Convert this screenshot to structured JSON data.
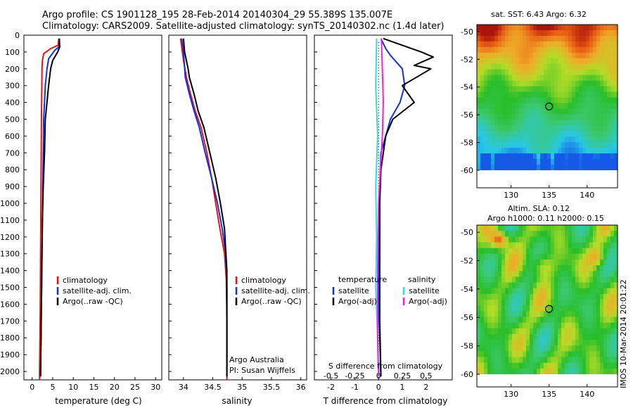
{
  "header": {
    "title_line1": "Argo profile: CS 1901128_195 28-Feb-2014 20140304_29 55.389S 135.007E",
    "title_line2": "Climatology: CARS2009. Satellite-adjusted climatology: synTS_20140302.nc (1.4d later)"
  },
  "stamp": "IMOS 10-Mar-2014 20:01:22",
  "colors": {
    "climatology": "#ee1111",
    "satellite": "#1133dd",
    "argo": "#000000",
    "sal_satellite": "#33dddd",
    "sal_argo": "#ee22ee"
  },
  "depth_axis": {
    "range": [
      0,
      2050
    ],
    "ticks": [
      0,
      100,
      200,
      300,
      400,
      500,
      600,
      700,
      800,
      900,
      1000,
      1100,
      1200,
      1300,
      1400,
      1500,
      1600,
      1700,
      1800,
      1900,
      2000
    ]
  },
  "chart_data": [
    {
      "type": "line",
      "id": "temperature",
      "xlabel": "temperature (deg C)",
      "xlim": [
        -2,
        31.5
      ],
      "xticks": [
        0,
        5,
        10,
        15,
        20,
        25,
        30
      ],
      "ylim": [
        2050,
        0
      ],
      "legend": [
        "climatology",
        "satellite-adj. clim.",
        "Argo(..raw -QC)"
      ],
      "series": [
        {
          "name": "climatology",
          "color": "#ee1111",
          "x": [
            6.5,
            6.3,
            4.5,
            2.8,
            2.5,
            2.4,
            2.35,
            2.3,
            2.25,
            2.2,
            2.15,
            2.1,
            2.05,
            2.0,
            1.95,
            1.9,
            1.85,
            1.8,
            1.8
          ],
          "y": [
            20,
            60,
            80,
            110,
            150,
            200,
            300,
            400,
            500,
            700,
            900,
            1100,
            1300,
            1500,
            1700,
            1800,
            1900,
            2000,
            2050
          ]
        },
        {
          "name": "satellite-adj. clim.",
          "color": "#1133dd",
          "x": [
            6.6,
            6.5,
            5.5,
            4.0,
            3.6,
            3.2,
            3.0,
            2.8,
            2.7,
            2.6,
            2.5,
            2.4,
            2.3,
            2.2,
            2.2,
            2.1,
            2.05
          ],
          "y": [
            20,
            70,
            90,
            140,
            200,
            300,
            400,
            500,
            700,
            900,
            1100,
            1300,
            1500,
            1700,
            1800,
            1900,
            2030
          ]
        },
        {
          "name": "Argo(..raw -QC)",
          "color": "#000000",
          "x": [
            6.6,
            6.7,
            6.2,
            5.0,
            4.5,
            4.0,
            3.6,
            3.2,
            3.0,
            2.7,
            2.5,
            2.4,
            2.3,
            2.2,
            2.15,
            2.1,
            2.05
          ],
          "y": [
            20,
            70,
            100,
            150,
            200,
            300,
            400,
            500,
            700,
            900,
            1100,
            1300,
            1500,
            1700,
            1800,
            1900,
            2030
          ]
        }
      ]
    },
    {
      "type": "line",
      "id": "salinity",
      "xlabel": "salinity",
      "xlim": [
        33.75,
        36.1
      ],
      "xticks": [
        34,
        34.5,
        35,
        35.5,
        36
      ],
      "ylim": [
        2050,
        0
      ],
      "legend": [
        "climatology",
        "satellite-adj. clim.",
        "Argo(..raw -QC)"
      ],
      "annotation": [
        "Argo Australia",
        "PI: Susan Wijffels"
      ],
      "series": [
        {
          "name": "climatology",
          "color": "#ee1111",
          "x": [
            33.95,
            34.0,
            34.05,
            34.12,
            34.2,
            34.3,
            34.4,
            34.48,
            34.55,
            34.62,
            34.7,
            34.73,
            34.74,
            34.74
          ],
          "y": [
            20,
            150,
            250,
            350,
            450,
            550,
            700,
            850,
            1000,
            1150,
            1300,
            1450,
            1700,
            2050
          ]
        },
        {
          "name": "satellite-adj. clim.",
          "color": "#1133dd",
          "x": [
            33.97,
            34.0,
            34.03,
            34.1,
            34.18,
            34.27,
            34.37,
            34.48,
            34.58,
            34.66,
            34.72,
            34.74,
            34.74
          ],
          "y": [
            20,
            100,
            250,
            350,
            450,
            550,
            700,
            850,
            1000,
            1150,
            1300,
            1500,
            2030
          ]
        },
        {
          "name": "Argo(..raw -QC)",
          "color": "#000000",
          "x": [
            34.0,
            34.02,
            34.05,
            34.08,
            34.1,
            34.18,
            34.25,
            34.35,
            34.45,
            34.55,
            34.63,
            34.7,
            34.74,
            34.74
          ],
          "y": [
            20,
            100,
            150,
            200,
            250,
            350,
            450,
            550,
            700,
            850,
            1000,
            1150,
            1400,
            2030
          ]
        }
      ]
    },
    {
      "type": "line",
      "id": "difference",
      "xlabel": "T difference from climatology",
      "xlabel_top": "S difference from climatology",
      "xlim": [
        -2.7,
        3.1
      ],
      "xticks": [
        -2,
        -1,
        0,
        1,
        2
      ],
      "xlim_top": [
        -0.675,
        0.775
      ],
      "xticks_top": [
        -0.5,
        -0.25,
        0,
        0.25,
        0.5
      ],
      "ylim": [
        2050,
        0
      ],
      "legend_left": {
        "header": "temperature",
        "items": [
          "satellite",
          "Argo(-adj)"
        ]
      },
      "legend_right": {
        "header": "salinity",
        "items": [
          "satellite",
          "Argo(-adj)"
        ]
      },
      "series": [
        {
          "name": "temperature satellite",
          "color": "#1133dd",
          "x": [
            0.1,
            0.3,
            0.5,
            1.0,
            1.1,
            0.9,
            0.5,
            0.3,
            0.1,
            0.05,
            0.0,
            0.0,
            0.0,
            0.05,
            0.1
          ],
          "y": [
            20,
            80,
            120,
            200,
            300,
            400,
            500,
            600,
            700,
            900,
            1100,
            1300,
            1600,
            1800,
            2030
          ]
        },
        {
          "name": "temperature Argo(-adj)",
          "color": "#000000",
          "x": [
            0.2,
            1.8,
            2.3,
            1.5,
            2.2,
            1.0,
            1.5,
            0.6,
            0.3,
            0.1,
            0.05,
            0.05,
            0.05,
            0.1
          ],
          "y": [
            20,
            100,
            130,
            180,
            200,
            300,
            400,
            500,
            600,
            800,
            1000,
            1300,
            1700,
            2030
          ]
        },
        {
          "name": "salinity satellite",
          "color": "#33dddd",
          "x": [
            -0.02,
            -0.03,
            -0.01,
            -0.03,
            -0.02,
            -0.03,
            -0.01,
            0.0
          ],
          "y": [
            20,
            300,
            600,
            900,
            1200,
            1500,
            1800,
            2030
          ]
        },
        {
          "name": "salinity Argo(-adj)",
          "color": "#ee22ee",
          "x": [
            0.03,
            0.04,
            0.05,
            0.04,
            0.02,
            0.0,
            -0.01,
            -0.01,
            0.0
          ],
          "y": [
            20,
            200,
            400,
            600,
            800,
            1000,
            1400,
            1800,
            2030
          ]
        }
      ]
    }
  ],
  "maps": [
    {
      "id": "sst-map",
      "title": "sat. SST: 6.43 Argo: 6.32",
      "xticks": [
        130,
        135,
        140
      ],
      "yticks": [
        -50,
        -52,
        -54,
        -56,
        -58,
        -60
      ],
      "marker": {
        "lon": 135.0,
        "lat": -55.4
      }
    },
    {
      "id": "sla-map",
      "title_line1": "Altim. SLA: 0.12",
      "title_line2": "Argo h1000: 0.11 h2000: 0.15",
      "xticks": [
        130,
        135,
        140
      ],
      "yticks": [
        -50,
        -52,
        -54,
        -56,
        -58,
        -60
      ],
      "marker": {
        "lon": 135.0,
        "lat": -55.4
      }
    }
  ]
}
